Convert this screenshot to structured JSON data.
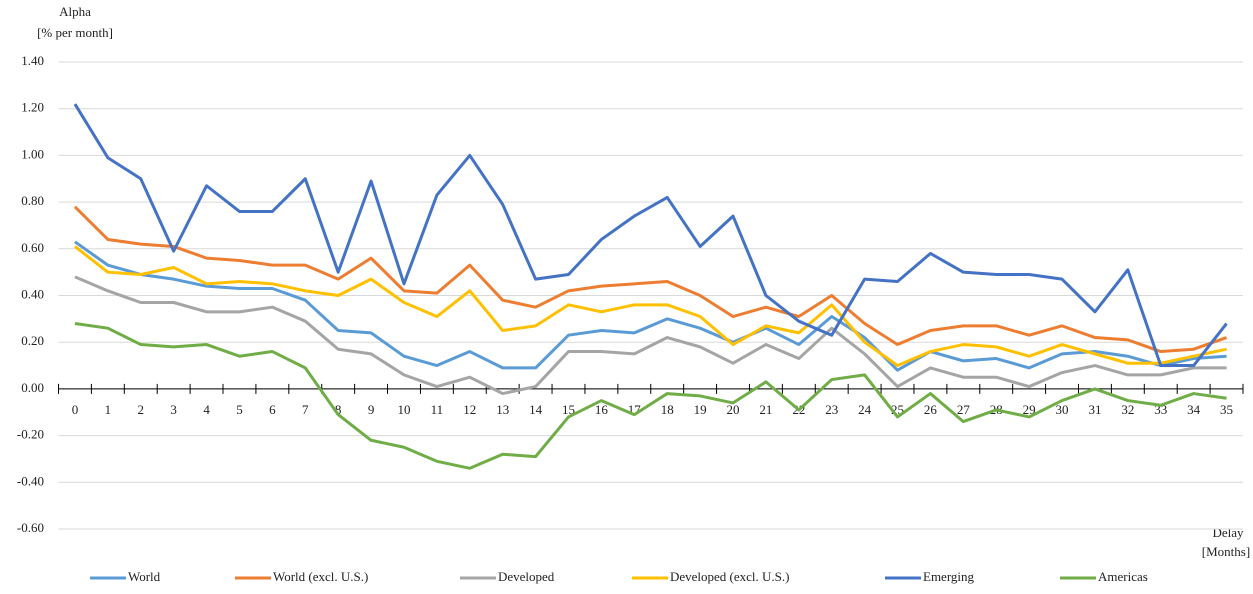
{
  "chart_data": {
    "type": "line",
    "y_label_lines": [
      "Alpha",
      "[% per month]"
    ],
    "x_label_lines": [
      "Delay",
      "[Months]"
    ],
    "categories": [
      "0",
      "1",
      "2",
      "3",
      "4",
      "5",
      "6",
      "7",
      "8",
      "9",
      "10",
      "11",
      "12",
      "13",
      "14",
      "15",
      "16",
      "17",
      "18",
      "19",
      "20",
      "21",
      "22",
      "23",
      "24",
      "25",
      "26",
      "27",
      "28",
      "29",
      "30",
      "31",
      "32",
      "33",
      "34",
      "35"
    ],
    "ylim": [
      -0.6,
      1.4
    ],
    "yticks": [
      {
        "value": -0.6,
        "label": "-0.60"
      },
      {
        "value": -0.4,
        "label": "-0.40"
      },
      {
        "value": -0.2,
        "label": "-0.20"
      },
      {
        "value": 0,
        "label": "0.00"
      },
      {
        "value": 0.2,
        "label": "0.20"
      },
      {
        "value": 0.4,
        "label": "0.40"
      },
      {
        "value": 0.6,
        "label": "0.60"
      },
      {
        "value": 0.8,
        "label": "0.80"
      },
      {
        "value": 1.0,
        "label": "1.00"
      },
      {
        "value": 1.2,
        "label": "1.20"
      },
      {
        "value": 1.4,
        "label": "1.40"
      }
    ],
    "grid": true,
    "legend": "bottom",
    "series": [
      {
        "name": "World",
        "color": "#5b9bd5",
        "values": [
          0.63,
          0.53,
          0.49,
          0.47,
          0.44,
          0.43,
          0.43,
          0.38,
          0.25,
          0.24,
          0.14,
          0.1,
          0.16,
          0.09,
          0.09,
          0.23,
          0.25,
          0.24,
          0.3,
          0.26,
          0.2,
          0.26,
          0.19,
          0.31,
          0.22,
          0.08,
          0.16,
          0.12,
          0.13,
          0.09,
          0.15,
          0.16,
          0.14,
          0.1,
          0.13,
          0.14
        ]
      },
      {
        "name": "World (excl. U.S.)",
        "color": "#ed7d31",
        "values": [
          0.78,
          0.64,
          0.62,
          0.61,
          0.56,
          0.55,
          0.53,
          0.53,
          0.47,
          0.56,
          0.42,
          0.41,
          0.53,
          0.38,
          0.35,
          0.42,
          0.44,
          0.45,
          0.46,
          0.4,
          0.31,
          0.35,
          0.31,
          0.4,
          0.28,
          0.19,
          0.25,
          0.27,
          0.27,
          0.23,
          0.27,
          0.22,
          0.21,
          0.16,
          0.17,
          0.22
        ]
      },
      {
        "name": "Developed",
        "color": "#a5a5a5",
        "values": [
          0.48,
          0.42,
          0.37,
          0.37,
          0.33,
          0.33,
          0.35,
          0.29,
          0.17,
          0.15,
          0.06,
          0.01,
          0.05,
          -0.02,
          0.01,
          0.16,
          0.16,
          0.15,
          0.22,
          0.18,
          0.11,
          0.19,
          0.13,
          0.26,
          0.15,
          0.01,
          0.09,
          0.05,
          0.05,
          0.01,
          0.07,
          0.1,
          0.06,
          0.06,
          0.09,
          0.09
        ]
      },
      {
        "name": "Developed (excl. U.S.)",
        "color": "#ffc000",
        "values": [
          0.61,
          0.5,
          0.49,
          0.52,
          0.45,
          0.46,
          0.45,
          0.42,
          0.4,
          0.47,
          0.37,
          0.31,
          0.42,
          0.25,
          0.27,
          0.36,
          0.33,
          0.36,
          0.36,
          0.31,
          0.19,
          0.27,
          0.24,
          0.36,
          0.2,
          0.1,
          0.16,
          0.19,
          0.18,
          0.14,
          0.19,
          0.15,
          0.11,
          0.11,
          0.14,
          0.17
        ]
      },
      {
        "name": "Emerging",
        "color": "#4472c4",
        "values": [
          1.22,
          0.99,
          0.9,
          0.59,
          0.87,
          0.76,
          0.76,
          0.9,
          0.5,
          0.89,
          0.45,
          0.83,
          1.0,
          0.79,
          0.47,
          0.49,
          0.64,
          0.74,
          0.82,
          0.61,
          0.74,
          0.4,
          0.29,
          0.23,
          0.47,
          0.46,
          0.58,
          0.5,
          0.49,
          0.49,
          0.47,
          0.33,
          0.51,
          0.1,
          0.1,
          0.28
        ]
      },
      {
        "name": "Americas",
        "color": "#70ad47",
        "values": [
          0.28,
          0.26,
          0.19,
          0.18,
          0.19,
          0.14,
          0.16,
          0.09,
          -0.11,
          -0.22,
          -0.25,
          -0.31,
          -0.34,
          -0.28,
          -0.29,
          -0.12,
          -0.05,
          -0.11,
          -0.02,
          -0.03,
          -0.06,
          0.03,
          -0.09,
          0.04,
          0.06,
          -0.12,
          -0.02,
          -0.14,
          -0.09,
          -0.12,
          -0.05,
          0.0,
          -0.05,
          -0.07,
          -0.02,
          -0.04
        ]
      }
    ]
  }
}
